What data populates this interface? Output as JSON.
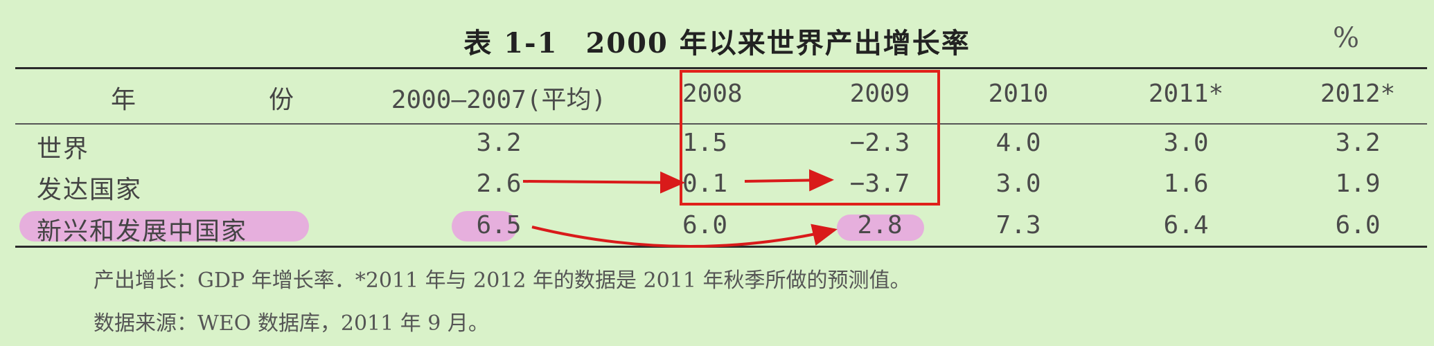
{
  "title": {
    "code": "表 1-1",
    "text": "2000 年以来世界产出增长率"
  },
  "unit": "%",
  "header": [
    "年　份",
    "2000—2007(平均)",
    "2008",
    "2009",
    "2010",
    "2011*",
    "2012*"
  ],
  "rows": [
    {
      "label": "世界",
      "values": [
        "3.2",
        "1.5",
        "−2.3",
        "4.0",
        "3.0",
        "3.2"
      ]
    },
    {
      "label": "发达国家",
      "values": [
        "2.6",
        "0.1",
        "−3.7",
        "3.0",
        "1.6",
        "1.9"
      ]
    },
    {
      "label": "新兴和发展中国家",
      "values": [
        "6.5",
        "6.0",
        "2.8",
        "7.3",
        "6.4",
        "6.0"
      ]
    }
  ],
  "notes": [
    "产出增长：GDP 年增长率．*2011 年与 2012 年的数据是 2011 年秋季所做的预测值。",
    "数据来源：WEO 数据库，2011 年 9 月。"
  ],
  "annotation_colors": {
    "box": "#e0201a",
    "arrow": "#d91a1a",
    "highlight": "#e8a3e0"
  }
}
